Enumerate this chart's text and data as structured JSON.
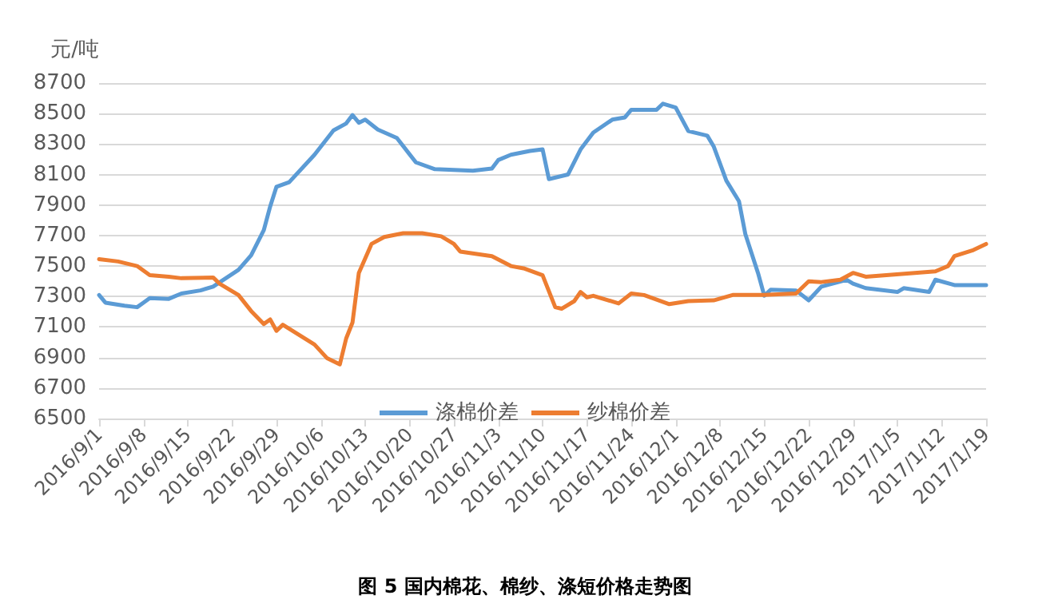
{
  "chart_data": {
    "type": "line",
    "title": "图 5 国内棉花、棉纱、涤短价格走势图",
    "ylabel": "元/吨",
    "ylim": [
      6500,
      8700
    ],
    "yticks": [
      6500,
      6700,
      6900,
      7100,
      7300,
      7500,
      7700,
      7900,
      8100,
      8300,
      8500,
      8700
    ],
    "xlim": [
      "2016-09-01",
      "2017-01-19"
    ],
    "xticks": [
      {
        "value": "2016-09-01",
        "label": "2016/9/1"
      },
      {
        "value": "2016-09-08",
        "label": "2016/9/8"
      },
      {
        "value": "2016-09-15",
        "label": "2016/9/15"
      },
      {
        "value": "2016-09-22",
        "label": "2016/9/22"
      },
      {
        "value": "2016-09-29",
        "label": "2016/9/29"
      },
      {
        "value": "2016-10-06",
        "label": "2016/10/6"
      },
      {
        "value": "2016-10-13",
        "label": "2016/10/13"
      },
      {
        "value": "2016-10-20",
        "label": "2016/10/20"
      },
      {
        "value": "2016-10-27",
        "label": "2016/10/27"
      },
      {
        "value": "2016-11-03",
        "label": "2016/11/3"
      },
      {
        "value": "2016-11-10",
        "label": "2016/11/10"
      },
      {
        "value": "2016-11-17",
        "label": "2016/11/17"
      },
      {
        "value": "2016-11-24",
        "label": "2016/11/24"
      },
      {
        "value": "2016-12-01",
        "label": "2016/12/1"
      },
      {
        "value": "2016-12-08",
        "label": "2016/12/8"
      },
      {
        "value": "2016-12-15",
        "label": "2016/12/15"
      },
      {
        "value": "2016-12-22",
        "label": "2016/12/22"
      },
      {
        "value": "2016-12-29",
        "label": "2016/12/29"
      },
      {
        "value": "2017-01-05",
        "label": "2017/1/5"
      },
      {
        "value": "2017-01-12",
        "label": "2017/1/12"
      },
      {
        "value": "2017-01-19",
        "label": "2017/1/19"
      }
    ],
    "grid": "y",
    "legend": "bottom",
    "marker": "none",
    "line_style": "solid",
    "series": [
      {
        "name": "涤棉价差",
        "color": "#5b9bd5",
        "x": [
          "2016-09-01",
          "2016-09-02",
          "2016-09-05",
          "2016-09-07",
          "2016-09-08",
          "2016-09-09",
          "2016-09-12",
          "2016-09-14",
          "2016-09-17",
          "2016-09-19",
          "2016-09-21",
          "2016-09-23",
          "2016-09-25",
          "2016-09-27",
          "2016-09-28",
          "2016-09-29",
          "2016-10-01",
          "2016-10-05",
          "2016-10-08",
          "2016-10-10",
          "2016-10-11",
          "2016-10-12",
          "2016-10-13",
          "2016-10-15",
          "2016-10-18",
          "2016-10-21",
          "2016-10-24",
          "2016-10-27",
          "2016-10-30",
          "2016-11-02",
          "2016-11-03",
          "2016-11-05",
          "2016-11-08",
          "2016-11-10",
          "2016-11-11",
          "2016-11-14",
          "2016-11-16",
          "2016-11-18",
          "2016-11-21",
          "2016-11-23",
          "2016-11-24",
          "2016-11-28",
          "2016-11-29",
          "2016-12-01",
          "2016-12-03",
          "2016-12-06",
          "2016-12-07",
          "2016-12-09",
          "2016-12-11",
          "2016-12-12",
          "2016-12-14",
          "2016-12-15",
          "2016-12-16",
          "2016-12-20",
          "2016-12-22",
          "2016-12-24",
          "2016-12-28",
          "2016-12-29",
          "2016-12-31",
          "2017-01-05",
          "2017-01-06",
          "2017-01-10",
          "2017-01-11",
          "2017-01-14",
          "2017-01-19"
        ],
        "values": [
          7310,
          7260,
          7240,
          7230,
          7260,
          7290,
          7285,
          7320,
          7340,
          7365,
          7420,
          7475,
          7570,
          7735,
          7890,
          8020,
          8050,
          8230,
          8390,
          8435,
          8490,
          8440,
          8460,
          8395,
          8340,
          8180,
          8135,
          8130,
          8125,
          8140,
          8195,
          8230,
          8255,
          8265,
          8070,
          8100,
          8265,
          8375,
          8460,
          8475,
          8525,
          8525,
          8565,
          8540,
          8385,
          8355,
          8285,
          8060,
          7925,
          7710,
          7455,
          7305,
          7345,
          7340,
          7275,
          7365,
          7410,
          7385,
          7355,
          7330,
          7355,
          7330,
          7410,
          7375,
          7375
        ]
      },
      {
        "name": "纱棉价差",
        "color": "#ed7d31",
        "x": [
          "2016-09-01",
          "2016-09-04",
          "2016-09-07",
          "2016-09-09",
          "2016-09-12",
          "2016-09-14",
          "2016-09-19",
          "2016-09-20",
          "2016-09-23",
          "2016-09-25",
          "2016-09-27",
          "2016-09-28",
          "2016-09-29",
          "2016-09-30",
          "2016-10-05",
          "2016-10-07",
          "2016-10-09",
          "2016-10-10",
          "2016-10-11",
          "2016-10-12",
          "2016-10-14",
          "2016-10-16",
          "2016-10-19",
          "2016-10-22",
          "2016-10-25",
          "2016-10-27",
          "2016-10-28",
          "2016-11-02",
          "2016-11-05",
          "2016-11-07",
          "2016-11-10",
          "2016-11-12",
          "2016-11-13",
          "2016-11-15",
          "2016-11-16",
          "2016-11-17",
          "2016-11-18",
          "2016-11-22",
          "2016-11-24",
          "2016-11-26",
          "2016-11-30",
          "2016-12-03",
          "2016-12-07",
          "2016-12-10",
          "2016-12-15",
          "2016-12-20",
          "2016-12-22",
          "2016-12-24",
          "2016-12-27",
          "2016-12-29",
          "2016-12-31",
          "2017-01-11",
          "2017-01-13",
          "2017-01-14",
          "2017-01-17",
          "2017-01-19"
        ],
        "values": [
          7545,
          7530,
          7500,
          7440,
          7430,
          7420,
          7425,
          7385,
          7310,
          7205,
          7120,
          7150,
          7075,
          7115,
          6985,
          6895,
          6855,
          7025,
          7130,
          7455,
          7645,
          7690,
          7715,
          7715,
          7695,
          7645,
          7595,
          7565,
          7500,
          7485,
          7440,
          7230,
          7220,
          7270,
          7330,
          7295,
          7305,
          7255,
          7320,
          7310,
          7250,
          7270,
          7275,
          7310,
          7310,
          7320,
          7400,
          7395,
          7410,
          7455,
          7430,
          7465,
          7500,
          7565,
          7605,
          7645
        ]
      }
    ]
  }
}
